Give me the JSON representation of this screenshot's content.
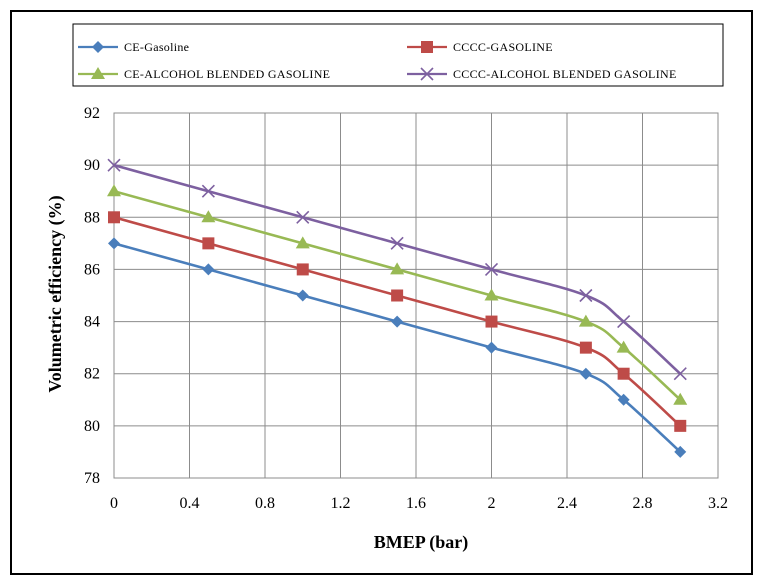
{
  "chart_data": {
    "type": "line",
    "xlabel": "BMEP (bar)",
    "ylabel": "Volumetric efficiency (%)",
    "xlim": [
      0,
      3.2
    ],
    "ylim": [
      78,
      92
    ],
    "xticks": [
      "0",
      "0.4",
      "0.8",
      "1.2",
      "1.6",
      "2",
      "2.4",
      "2.8",
      "3.2"
    ],
    "yticks": [
      "78",
      "80",
      "82",
      "84",
      "86",
      "88",
      "90",
      "92"
    ],
    "grid": true,
    "legend_position": "top",
    "x": [
      0,
      0.5,
      1,
      1.5,
      2,
      2.5,
      2.7,
      3
    ],
    "series": [
      {
        "name": "CE-Gasoline",
        "color": "#4a7ebb",
        "marker": "diamond",
        "values": [
          87,
          86,
          85,
          84,
          83,
          82,
          81,
          79
        ]
      },
      {
        "name": "CCCC-GASOLINE",
        "color": "#be4b48",
        "marker": "square",
        "values": [
          88,
          87,
          86,
          85,
          84,
          83,
          82,
          80
        ]
      },
      {
        "name": "CE-ALCOHOL BLENDED GASOLINE",
        "color": "#98b954",
        "marker": "triangle",
        "values": [
          89,
          88,
          87,
          86,
          85,
          84,
          83,
          81
        ]
      },
      {
        "name": "CCCC-ALCOHOL BLENDED GASOLINE",
        "color": "#7d60a0",
        "marker": "x",
        "values": [
          90,
          89,
          88,
          87,
          86,
          85,
          84,
          82
        ]
      }
    ]
  }
}
